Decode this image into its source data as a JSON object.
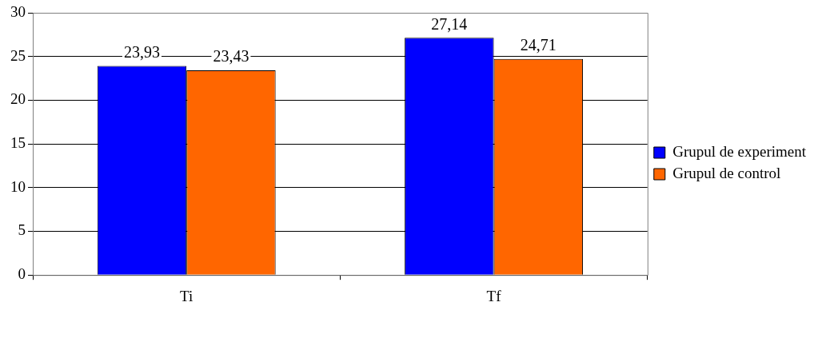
{
  "chart_data": {
    "type": "bar",
    "categories": [
      "Ti",
      "Tf"
    ],
    "series": [
      {
        "name": "Grupul de experiment",
        "color": "#0000ff",
        "values": [
          23.93,
          27.14
        ],
        "value_labels": [
          "23,93",
          "27,14"
        ]
      },
      {
        "name": "Grupul de control",
        "color": "#ff6600",
        "values": [
          23.43,
          24.71
        ],
        "value_labels": [
          "23,43",
          "24,71"
        ]
      }
    ],
    "ylim": [
      0,
      30
    ],
    "yticks": [
      0,
      5,
      10,
      15,
      20,
      25,
      30
    ],
    "grid": "y",
    "legend": "right"
  }
}
